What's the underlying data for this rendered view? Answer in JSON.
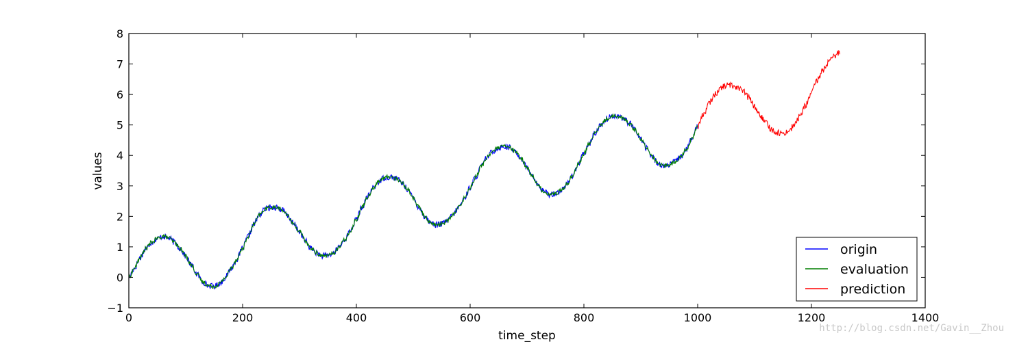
{
  "chart_data": {
    "type": "line",
    "title": "",
    "xlabel": "time_step",
    "ylabel": "values",
    "xlim": [
      0,
      1400
    ],
    "ylim": [
      -1,
      8
    ],
    "xticks": [
      0,
      200,
      400,
      600,
      800,
      1000,
      1200,
      1400
    ],
    "yticks": [
      -1,
      0,
      1,
      2,
      3,
      4,
      5,
      6,
      7,
      8
    ],
    "grid": false,
    "legend_position": "lower-right",
    "series": [
      {
        "name": "origin",
        "color": "#0000ff",
        "x_start": 0,
        "x_end": 1000,
        "points": [
          [
            0,
            0.0
          ],
          [
            10,
            0.3
          ],
          [
            20,
            0.65
          ],
          [
            30,
            0.95
          ],
          [
            40,
            1.15
          ],
          [
            50,
            1.27
          ],
          [
            60,
            1.35
          ],
          [
            70,
            1.3
          ],
          [
            80,
            1.15
          ],
          [
            90,
            0.95
          ],
          [
            100,
            0.7
          ],
          [
            110,
            0.4
          ],
          [
            120,
            0.1
          ],
          [
            130,
            -0.15
          ],
          [
            140,
            -0.27
          ],
          [
            150,
            -0.3
          ],
          [
            160,
            -0.2
          ],
          [
            170,
            0.0
          ],
          [
            180,
            0.3
          ],
          [
            190,
            0.6
          ],
          [
            200,
            0.95
          ],
          [
            210,
            1.35
          ],
          [
            220,
            1.75
          ],
          [
            230,
            2.05
          ],
          [
            240,
            2.25
          ],
          [
            250,
            2.3
          ],
          [
            260,
            2.3
          ],
          [
            270,
            2.2
          ],
          [
            280,
            2.0
          ],
          [
            290,
            1.75
          ],
          [
            300,
            1.5
          ],
          [
            310,
            1.2
          ],
          [
            320,
            0.95
          ],
          [
            330,
            0.8
          ],
          [
            340,
            0.7
          ],
          [
            350,
            0.72
          ],
          [
            360,
            0.8
          ],
          [
            370,
            1.0
          ],
          [
            380,
            1.25
          ],
          [
            390,
            1.55
          ],
          [
            400,
            1.9
          ],
          [
            410,
            2.3
          ],
          [
            420,
            2.65
          ],
          [
            430,
            2.95
          ],
          [
            440,
            3.15
          ],
          [
            450,
            3.28
          ],
          [
            460,
            3.3
          ],
          [
            470,
            3.25
          ],
          [
            480,
            3.1
          ],
          [
            490,
            2.9
          ],
          [
            500,
            2.6
          ],
          [
            510,
            2.3
          ],
          [
            520,
            2.0
          ],
          [
            530,
            1.8
          ],
          [
            540,
            1.72
          ],
          [
            550,
            1.75
          ],
          [
            560,
            1.85
          ],
          [
            570,
            2.05
          ],
          [
            580,
            2.3
          ],
          [
            590,
            2.6
          ],
          [
            600,
            2.95
          ],
          [
            610,
            3.3
          ],
          [
            620,
            3.65
          ],
          [
            630,
            3.95
          ],
          [
            640,
            4.15
          ],
          [
            650,
            4.25
          ],
          [
            660,
            4.3
          ],
          [
            670,
            4.25
          ],
          [
            680,
            4.1
          ],
          [
            690,
            3.9
          ],
          [
            700,
            3.6
          ],
          [
            710,
            3.3
          ],
          [
            720,
            3.0
          ],
          [
            730,
            2.8
          ],
          [
            740,
            2.72
          ],
          [
            750,
            2.75
          ],
          [
            760,
            2.85
          ],
          [
            770,
            3.05
          ],
          [
            780,
            3.35
          ],
          [
            790,
            3.7
          ],
          [
            800,
            4.05
          ],
          [
            810,
            4.4
          ],
          [
            820,
            4.75
          ],
          [
            830,
            5.0
          ],
          [
            840,
            5.2
          ],
          [
            850,
            5.3
          ],
          [
            860,
            5.3
          ],
          [
            870,
            5.2
          ],
          [
            880,
            5.05
          ],
          [
            890,
            4.85
          ],
          [
            900,
            4.55
          ],
          [
            910,
            4.25
          ],
          [
            920,
            3.95
          ],
          [
            930,
            3.75
          ],
          [
            940,
            3.65
          ],
          [
            950,
            3.68
          ],
          [
            960,
            3.8
          ],
          [
            970,
            3.95
          ],
          [
            980,
            4.2
          ],
          [
            990,
            4.55
          ],
          [
            1000,
            4.95
          ]
        ]
      },
      {
        "name": "evaluation",
        "color": "#007f00",
        "x_start": 0,
        "x_end": 1000,
        "points": [
          [
            0,
            0.0
          ],
          [
            10,
            0.3
          ],
          [
            20,
            0.65
          ],
          [
            30,
            0.95
          ],
          [
            40,
            1.15
          ],
          [
            50,
            1.27
          ],
          [
            60,
            1.35
          ],
          [
            70,
            1.3
          ],
          [
            80,
            1.15
          ],
          [
            90,
            0.95
          ],
          [
            100,
            0.7
          ],
          [
            110,
            0.4
          ],
          [
            120,
            0.1
          ],
          [
            130,
            -0.15
          ],
          [
            140,
            -0.27
          ],
          [
            150,
            -0.3
          ],
          [
            160,
            -0.2
          ],
          [
            170,
            0.0
          ],
          [
            180,
            0.3
          ],
          [
            190,
            0.6
          ],
          [
            200,
            0.95
          ],
          [
            210,
            1.35
          ],
          [
            220,
            1.75
          ],
          [
            230,
            2.05
          ],
          [
            240,
            2.25
          ],
          [
            250,
            2.3
          ],
          [
            260,
            2.3
          ],
          [
            270,
            2.2
          ],
          [
            280,
            2.0
          ],
          [
            290,
            1.75
          ],
          [
            300,
            1.5
          ],
          [
            310,
            1.2
          ],
          [
            320,
            0.95
          ],
          [
            330,
            0.8
          ],
          [
            340,
            0.7
          ],
          [
            350,
            0.72
          ],
          [
            360,
            0.8
          ],
          [
            370,
            1.0
          ],
          [
            380,
            1.25
          ],
          [
            390,
            1.55
          ],
          [
            400,
            1.9
          ],
          [
            410,
            2.3
          ],
          [
            420,
            2.65
          ],
          [
            430,
            2.95
          ],
          [
            440,
            3.15
          ],
          [
            450,
            3.28
          ],
          [
            460,
            3.3
          ],
          [
            470,
            3.25
          ],
          [
            480,
            3.1
          ],
          [
            490,
            2.9
          ],
          [
            500,
            2.6
          ],
          [
            510,
            2.3
          ],
          [
            520,
            2.0
          ],
          [
            530,
            1.8
          ],
          [
            540,
            1.72
          ],
          [
            550,
            1.75
          ],
          [
            560,
            1.85
          ],
          [
            570,
            2.05
          ],
          [
            580,
            2.3
          ],
          [
            590,
            2.6
          ],
          [
            600,
            2.95
          ],
          [
            610,
            3.3
          ],
          [
            620,
            3.65
          ],
          [
            630,
            3.95
          ],
          [
            640,
            4.15
          ],
          [
            650,
            4.25
          ],
          [
            660,
            4.3
          ],
          [
            670,
            4.25
          ],
          [
            680,
            4.1
          ],
          [
            690,
            3.9
          ],
          [
            700,
            3.6
          ],
          [
            710,
            3.3
          ],
          [
            720,
            3.0
          ],
          [
            730,
            2.8
          ],
          [
            740,
            2.72
          ],
          [
            750,
            2.75
          ],
          [
            760,
            2.85
          ],
          [
            770,
            3.05
          ],
          [
            780,
            3.35
          ],
          [
            790,
            3.7
          ],
          [
            800,
            4.05
          ],
          [
            810,
            4.4
          ],
          [
            820,
            4.75
          ],
          [
            830,
            5.0
          ],
          [
            840,
            5.2
          ],
          [
            850,
            5.3
          ],
          [
            860,
            5.3
          ],
          [
            870,
            5.2
          ],
          [
            880,
            5.05
          ],
          [
            890,
            4.85
          ],
          [
            900,
            4.55
          ],
          [
            910,
            4.25
          ],
          [
            920,
            3.95
          ],
          [
            930,
            3.75
          ],
          [
            940,
            3.65
          ],
          [
            950,
            3.68
          ],
          [
            960,
            3.8
          ],
          [
            970,
            3.95
          ],
          [
            980,
            4.2
          ],
          [
            990,
            4.55
          ],
          [
            1000,
            4.95
          ]
        ]
      },
      {
        "name": "prediction",
        "color": "#ff0000",
        "x_start": 1000,
        "x_end": 1250,
        "points": [
          [
            1000,
            4.95
          ],
          [
            1010,
            5.35
          ],
          [
            1020,
            5.7
          ],
          [
            1030,
            6.0
          ],
          [
            1040,
            6.2
          ],
          [
            1050,
            6.3
          ],
          [
            1060,
            6.3
          ],
          [
            1070,
            6.25
          ],
          [
            1080,
            6.1
          ],
          [
            1090,
            5.9
          ],
          [
            1100,
            5.6
          ],
          [
            1110,
            5.3
          ],
          [
            1120,
            5.05
          ],
          [
            1130,
            4.85
          ],
          [
            1140,
            4.75
          ],
          [
            1150,
            4.72
          ],
          [
            1160,
            4.8
          ],
          [
            1170,
            5.0
          ],
          [
            1180,
            5.3
          ],
          [
            1190,
            5.65
          ],
          [
            1200,
            6.05
          ],
          [
            1210,
            6.45
          ],
          [
            1220,
            6.8
          ],
          [
            1230,
            7.05
          ],
          [
            1240,
            7.25
          ],
          [
            1250,
            7.4
          ]
        ]
      }
    ]
  },
  "watermark": "http://blog.csdn.net/Gavin__Zhou"
}
